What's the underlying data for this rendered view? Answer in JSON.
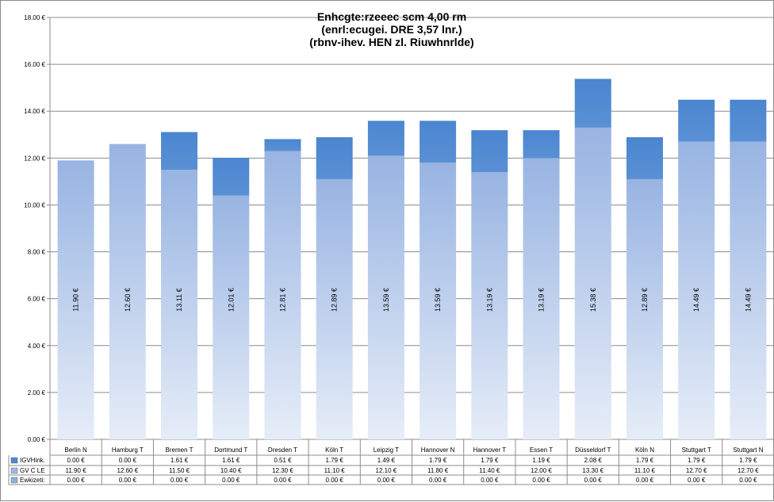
{
  "chart_data": {
    "type": "bar",
    "stacked": true,
    "title": [
      "Enhcgte:rzeeec scm 4,00 rm",
      "(enrl:ecugei. DRE 3,57 lnr.)",
      "(rbnv-ihev. HEN zl. Riuwhnrlde)"
    ],
    "categories": [
      "Berlin N",
      "Hamburg T",
      "Bremen T",
      "Dortmund T",
      "Dresden T",
      "Köln T",
      "Leipzig T",
      "Hannover N",
      "Hannover T",
      "Essen T",
      "Düsseldorf T",
      "Köln N",
      "Stuttgart T",
      "Stuttgart N"
    ],
    "ylim": [
      0,
      18
    ],
    "yticks": [
      "0.00 €",
      "2.00 €",
      "4.00 €",
      "6.00 €",
      "8.00 €",
      "10.00 €",
      "12.00 €",
      "14.00 €",
      "16.00 €",
      "18.00 €"
    ],
    "grid": true,
    "legend_position": "table-bottom",
    "series": [
      {
        "name": "Ewkizeti:",
        "color": "#8eb0de",
        "values": [
          0,
          0,
          0,
          0,
          0,
          0,
          0,
          0,
          0,
          0,
          0,
          0,
          0,
          0
        ],
        "labels": [
          "0.00 €",
          "0.00 €",
          "0.00 €",
          "0.00 €",
          "0.00 €",
          "0.00 €",
          "0.00 €",
          "0.00 €",
          "0.00 €",
          "0.00 €",
          "0.00 €",
          "0.00 €",
          "0.00 €",
          "0.00 €"
        ]
      },
      {
        "name": "GV C LE",
        "color": "#9fb7e4",
        "values": [
          11.9,
          12.6,
          11.5,
          10.4,
          12.3,
          11.1,
          12.1,
          11.8,
          11.4,
          12.0,
          13.3,
          11.1,
          12.7,
          12.7
        ],
        "labels": [
          "11.90 €",
          "12.60 €",
          "11.50 €",
          "10.40 €",
          "12.30 €",
          "11.10 €",
          "12.10 €",
          "11.80 €",
          "11.40 €",
          "12.00 €",
          "13.30 €",
          "11.10 €",
          "12.70 €",
          "12.70 €"
        ]
      },
      {
        "name": "IGVHink.",
        "color": "#4f88ce",
        "values": [
          0,
          0,
          1.61,
          1.61,
          0.51,
          1.79,
          1.49,
          1.79,
          1.79,
          1.19,
          2.08,
          1.79,
          1.79,
          1.79
        ],
        "labels": [
          "0.00 €",
          "0.00 €",
          "1.61 €",
          "1.61 €",
          "0.51 €",
          "1.79 €",
          "1.49 €",
          "1.79 €",
          "1.79 €",
          "1.19 €",
          "2.08 €",
          "1.79 €",
          "1.79 €",
          "1.79 €"
        ]
      }
    ],
    "total_labels": [
      "11.90 €",
      "12.60 €",
      "13.11 €",
      "12.01 €",
      "12.81 €",
      "12.89 €",
      "13.59 €",
      "13.59 €",
      "13.19 €",
      "13.19 €",
      "15.38 €",
      "12.89 €",
      "14.49 €",
      "14.49 €"
    ]
  }
}
